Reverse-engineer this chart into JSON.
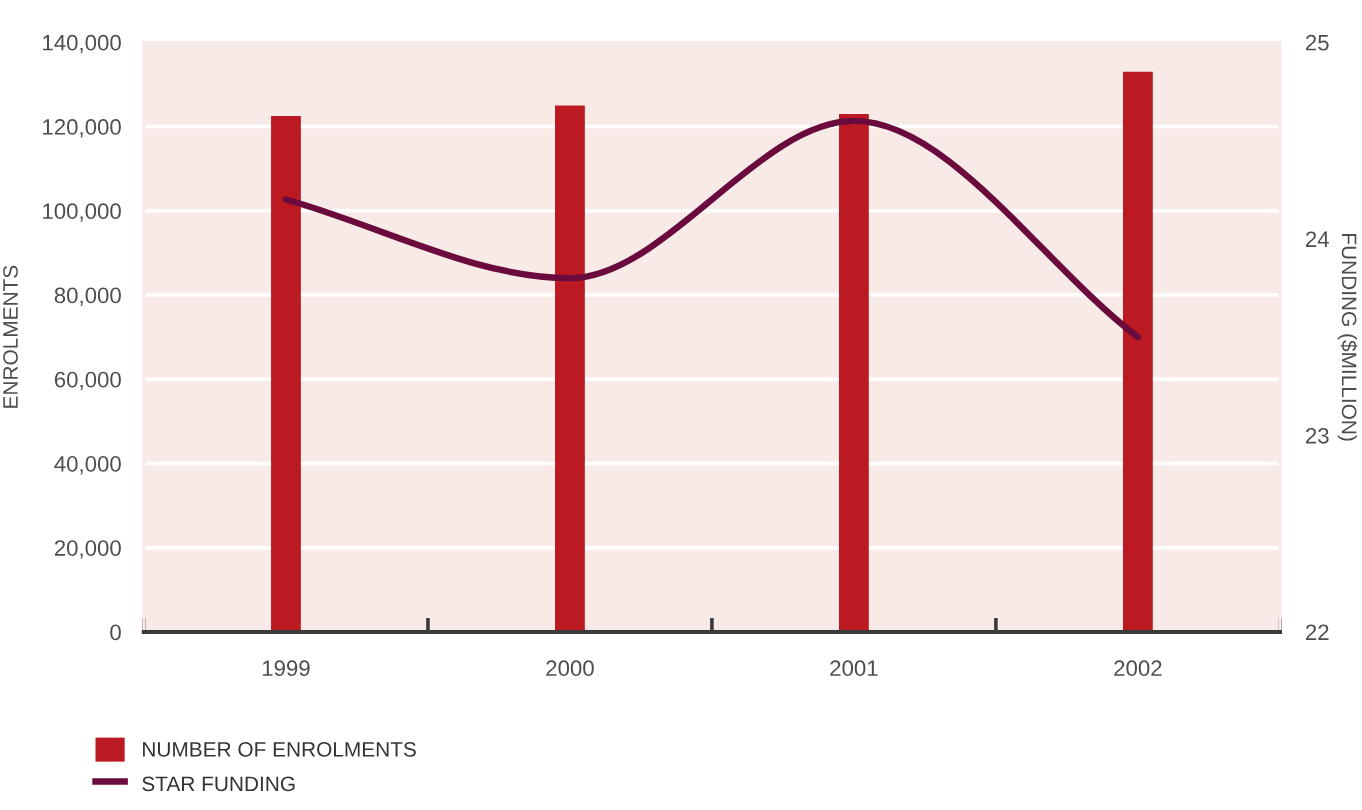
{
  "chart_data": {
    "type": "bar",
    "categories": [
      "1999",
      "2000",
      "2001",
      "2002"
    ],
    "ylabel": "ENROLMENTS",
    "y2label": "FUNDING ($MILLION)",
    "series": [
      {
        "name": "NUMBER OF ENROLMENTS",
        "color": "#bc1a22",
        "values": [
          122500,
          125000,
          123000,
          133000
        ]
      },
      {
        "name": "STAR FUNDING",
        "type": "line",
        "axis": "y2",
        "color": "#6b0a3c",
        "values": [
          24.2,
          23.8,
          24.6,
          23.5
        ]
      }
    ],
    "ylim": [
      0,
      140000
    ],
    "yticks": [
      0,
      {
        "value": 20000,
        "label": "20,000"
      },
      {
        "value": 40000,
        "label": "40,000"
      },
      {
        "value": 60000,
        "label": "60,000"
      },
      {
        "value": 80000,
        "label": "80,000"
      },
      {
        "value": 100000,
        "label": "100,000"
      },
      {
        "value": 120000,
        "label": "120,000"
      },
      {
        "value": 140000,
        "label": "140,000"
      }
    ],
    "y2lim": [
      22,
      25
    ],
    "y2ticks": [
      22,
      23,
      24,
      25
    ],
    "grid": "y",
    "legend": "bottom left"
  }
}
